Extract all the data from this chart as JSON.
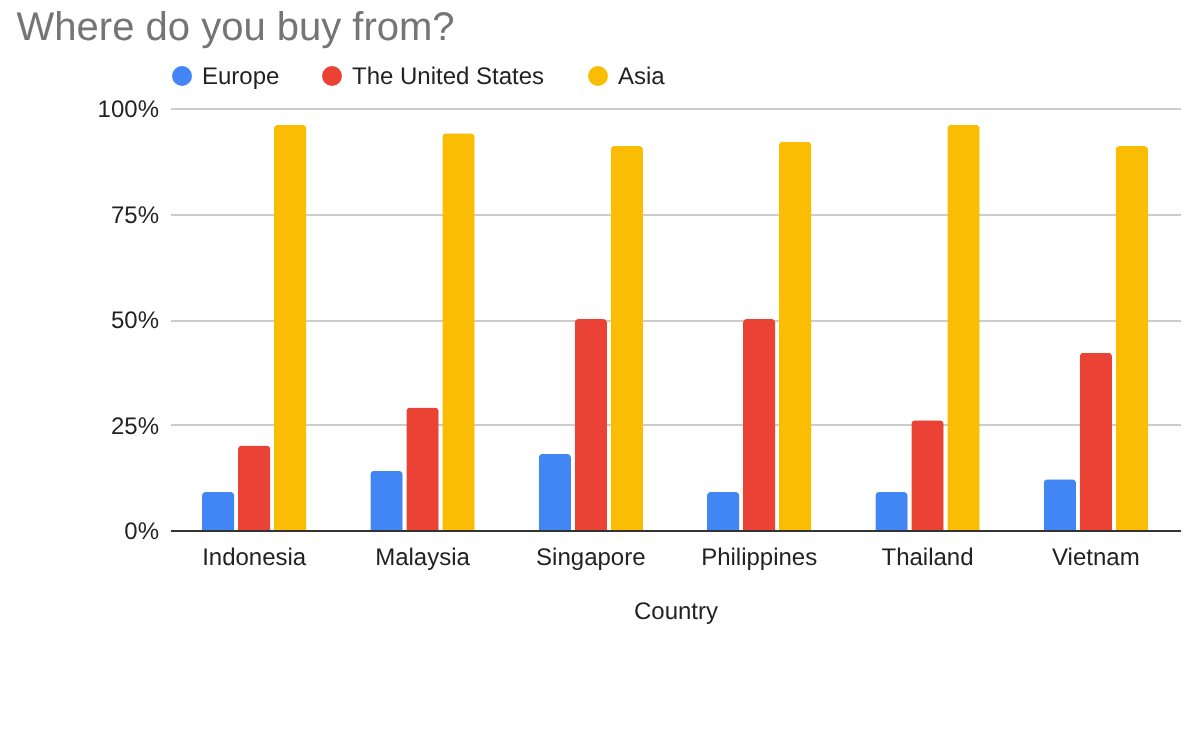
{
  "chart_data": {
    "type": "bar",
    "title": "Where do you buy from?",
    "xlabel": "Country",
    "categories": [
      "Indonesia",
      "Malaysia",
      "Singapore",
      "Philippines",
      "Thailand",
      "Vietnam"
    ],
    "series": [
      {
        "name": "Europe",
        "color": "#4285f4",
        "values": [
          9,
          14,
          18,
          9,
          9,
          12
        ]
      },
      {
        "name": "The United States",
        "color": "#ea4335",
        "values": [
          20,
          29,
          50,
          50,
          26,
          42
        ]
      },
      {
        "name": "Asia",
        "color": "#fbbc04",
        "values": [
          96,
          94,
          91,
          92,
          96,
          91
        ]
      }
    ],
    "ylim": [
      0,
      100
    ],
    "yticks": [
      {
        "value": 0,
        "label": "0%"
      },
      {
        "value": 25,
        "label": "25%"
      },
      {
        "value": 50,
        "label": "50%"
      },
      {
        "value": 75,
        "label": "75%"
      },
      {
        "value": 100,
        "label": "100%"
      }
    ],
    "grid": "y",
    "legend": "top"
  }
}
